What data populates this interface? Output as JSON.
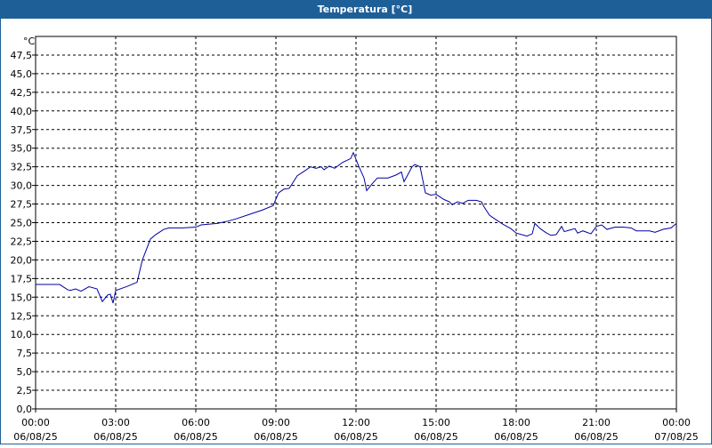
{
  "window_title": "Temperatura [°C]",
  "chart_data": {
    "type": "line",
    "unit": "°C",
    "x": [
      0,
      0.9,
      1.2,
      1.3,
      1.5,
      1.7,
      2.0,
      2.3,
      2.5,
      2.7,
      2.8,
      2.9,
      3.0,
      3.4,
      3.8,
      4.0,
      4.3,
      4.5,
      4.8,
      5.0,
      5.5,
      6.0,
      6.2,
      6.8,
      7.2,
      7.5,
      8.0,
      8.5,
      8.9,
      9.1,
      9.3,
      9.5,
      9.8,
      10.1,
      10.3,
      10.5,
      10.7,
      10.8,
      11.0,
      11.2,
      11.5,
      11.8,
      11.9,
      12.1,
      12.3,
      12.4,
      12.6,
      12.8,
      13.2,
      13.5,
      13.7,
      13.8,
      14.1,
      14.2,
      14.4,
      14.6,
      14.8,
      15.0,
      15.3,
      15.5,
      15.6,
      15.8,
      16.0,
      16.2,
      16.5,
      16.7,
      16.8,
      17.0,
      17.2,
      17.5,
      17.8,
      18.0,
      18.3,
      18.4,
      18.6,
      18.7,
      18.9,
      19.1,
      19.3,
      19.5,
      19.7,
      19.8,
      20.0,
      20.2,
      20.3,
      20.5,
      20.8,
      21.0,
      21.2,
      21.4,
      21.7,
      22.0,
      22.3,
      22.5,
      23.0,
      23.2,
      23.5,
      23.8,
      24.0
    ],
    "series": [
      {
        "color": "#0000a0",
        "values": [
          16.7,
          16.7,
          16.0,
          15.9,
          16.1,
          15.8,
          16.4,
          16.1,
          14.4,
          15.3,
          15.4,
          14.2,
          15.9,
          16.4,
          17.0,
          20.0,
          22.8,
          23.4,
          24.1,
          24.3,
          24.3,
          24.4,
          24.7,
          24.9,
          25.2,
          25.5,
          26.1,
          26.7,
          27.3,
          29.0,
          29.5,
          29.6,
          31.3,
          32.0,
          32.5,
          32.3,
          32.5,
          32.1,
          32.6,
          32.3,
          33.1,
          33.6,
          34.4,
          32.6,
          31.0,
          29.3,
          30.2,
          31.0,
          31.0,
          31.4,
          31.8,
          30.5,
          32.5,
          32.8,
          32.5,
          29.0,
          28.7,
          28.8,
          28.1,
          27.8,
          27.4,
          27.8,
          27.6,
          28.0,
          28.0,
          27.8,
          27.1,
          26.0,
          25.5,
          24.8,
          24.2,
          23.6,
          23.3,
          23.2,
          23.5,
          24.9,
          24.2,
          23.7,
          23.3,
          23.4,
          24.5,
          23.8,
          24.0,
          24.2,
          23.6,
          23.9,
          23.5,
          24.5,
          24.7,
          24.1,
          24.4,
          24.4,
          24.3,
          23.9,
          23.9,
          23.7,
          24.1,
          24.3,
          24.9
        ]
      }
    ],
    "xlim": [
      0,
      24
    ],
    "ylim": [
      0,
      50
    ],
    "xticks": [
      {
        "value": 0,
        "label": "00:00",
        "date": "06/08/25"
      },
      {
        "value": 3,
        "label": "03:00",
        "date": "06/08/25"
      },
      {
        "value": 6,
        "label": "06:00",
        "date": "06/08/25"
      },
      {
        "value": 9,
        "label": "09:00",
        "date": "06/08/25"
      },
      {
        "value": 12,
        "label": "12:00",
        "date": "06/08/25"
      },
      {
        "value": 15,
        "label": "15:00",
        "date": "06/08/25"
      },
      {
        "value": 18,
        "label": "18:00",
        "date": "06/08/25"
      },
      {
        "value": 21,
        "label": "21:00",
        "date": "06/08/25"
      },
      {
        "value": 24,
        "label": "00:00",
        "date": "07/08/25"
      }
    ],
    "yticks": [
      {
        "value": 0,
        "label": "0,0"
      },
      {
        "value": 2.5,
        "label": "2,5"
      },
      {
        "value": 5,
        "label": "5,0"
      },
      {
        "value": 7.5,
        "label": "7,5"
      },
      {
        "value": 10,
        "label": "10,0"
      },
      {
        "value": 12.5,
        "label": "12,5"
      },
      {
        "value": 15,
        "label": "15,0"
      },
      {
        "value": 17.5,
        "label": "17,5"
      },
      {
        "value": 20,
        "label": "20,0"
      },
      {
        "value": 22.5,
        "label": "22,5"
      },
      {
        "value": 25,
        "label": "25,0"
      },
      {
        "value": 27.5,
        "label": "27,5"
      },
      {
        "value": 30,
        "label": "30,0"
      },
      {
        "value": 32.5,
        "label": "32,5"
      },
      {
        "value": 35,
        "label": "35,0"
      },
      {
        "value": 37.5,
        "label": "37,5"
      },
      {
        "value": 40,
        "label": "40,0"
      },
      {
        "value": 42.5,
        "label": "42,5"
      },
      {
        "value": 45,
        "label": "45,0"
      },
      {
        "value": 47.5,
        "label": "47,5"
      }
    ],
    "grid": true
  }
}
